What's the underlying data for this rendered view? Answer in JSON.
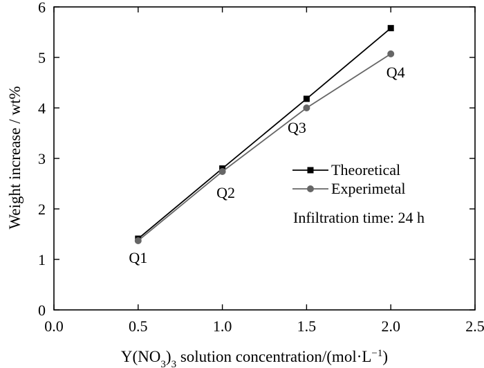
{
  "chart_data": {
    "type": "line",
    "xlabel_parts": [
      "Y(NO",
      "3",
      ")",
      "3",
      " solution concentration/(mol·L",
      "−1",
      ")"
    ],
    "ylabel": "Weight increase / wt%",
    "xlim": [
      0.0,
      2.5
    ],
    "ylim": [
      0,
      6
    ],
    "xticks": [
      "0.0",
      "0.5",
      "1.0",
      "1.5",
      "2.0",
      "2.5"
    ],
    "yticks": [
      "0",
      "1",
      "2",
      "3",
      "4",
      "5",
      "6"
    ],
    "x": [
      0.5,
      1.0,
      1.5,
      2.0
    ],
    "series": [
      {
        "name": "Theoretical",
        "marker": "square",
        "color": "#000000",
        "values": [
          1.41,
          2.8,
          4.18,
          5.58
        ]
      },
      {
        "name": "Experimetal",
        "marker": "circle",
        "color": "#666666",
        "values": [
          1.37,
          2.74,
          4.0,
          5.07
        ]
      }
    ],
    "point_labels": [
      "Q1",
      "Q2",
      "Q3",
      "Q4"
    ],
    "annotation": "Infiltration time: 24 h",
    "legend_position": "center-right",
    "grid": false
  }
}
